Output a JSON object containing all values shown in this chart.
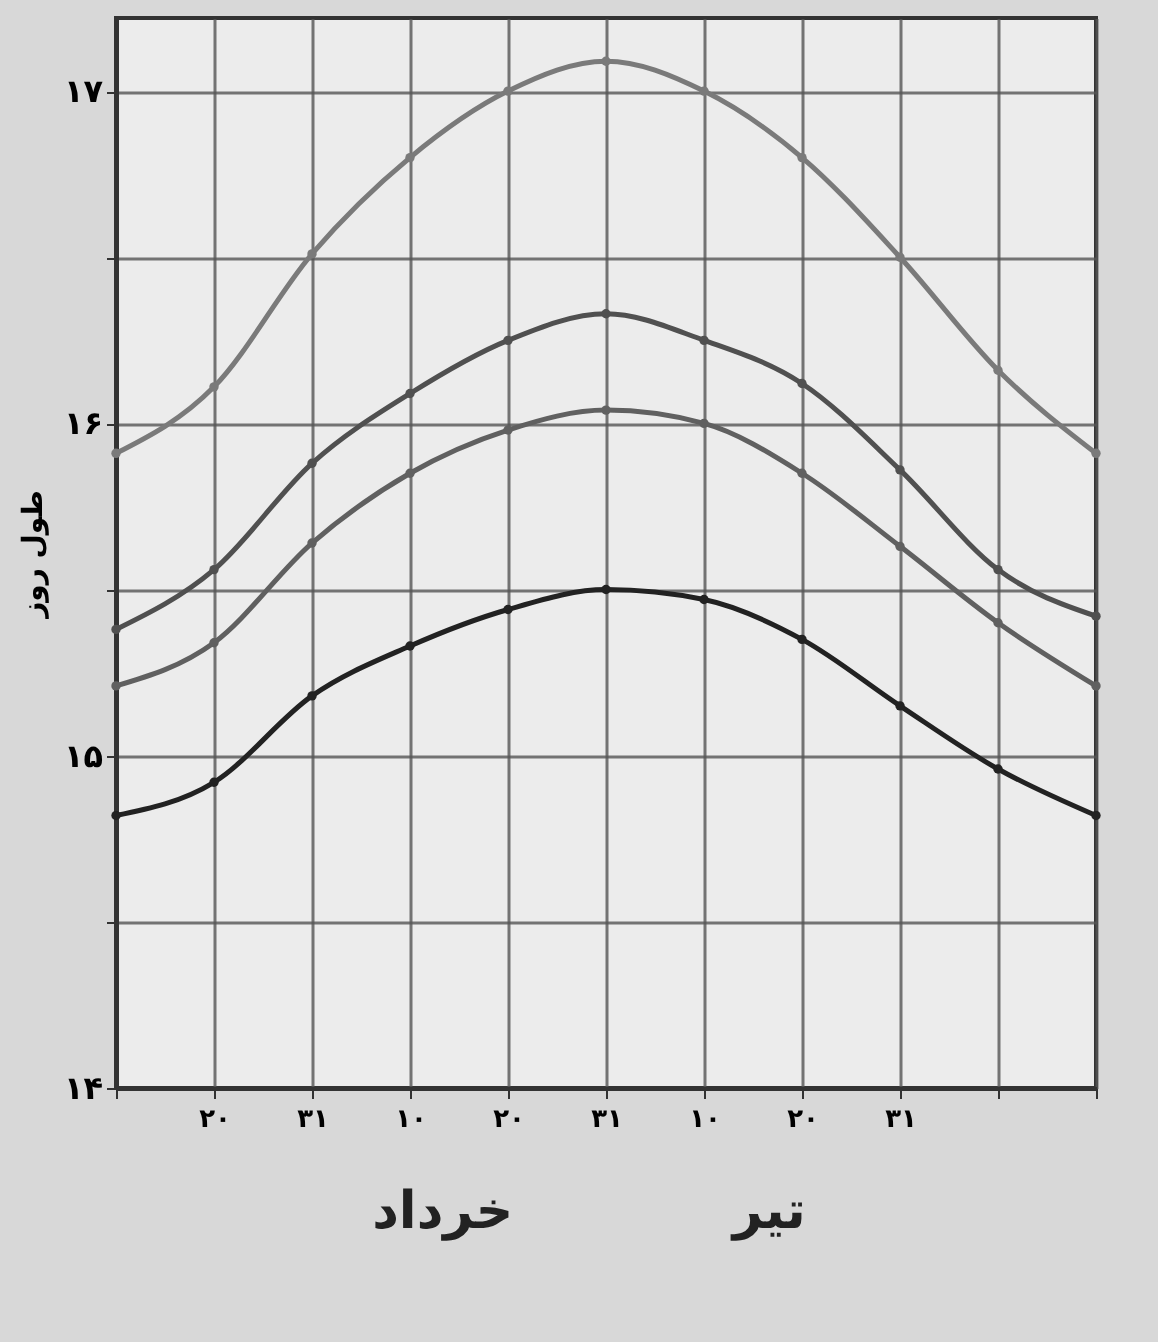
{
  "chart_data": {
    "type": "line",
    "ylabel": "طول روز",
    "categories": [
      null,
      "۲۰",
      "۳۱",
      "۱۰",
      "۲۰",
      "۳۱",
      "۱۰",
      "۲۰",
      "۳۱",
      null,
      null
    ],
    "series": [
      {
        "color": "#7a7a7a",
        "values": [
          15.91,
          16.11,
          16.51,
          16.8,
          17.0,
          17.09,
          17.0,
          16.8,
          16.5,
          16.16,
          15.91
        ]
      },
      {
        "color": "#505050",
        "values": [
          15.38,
          15.56,
          15.88,
          16.09,
          16.25,
          16.33,
          16.25,
          16.12,
          15.86,
          15.56,
          15.42
        ]
      },
      {
        "color": "#606060",
        "values": [
          15.21,
          15.34,
          15.64,
          15.85,
          15.98,
          16.04,
          16.0,
          15.85,
          15.63,
          15.4,
          15.21
        ]
      },
      {
        "color": "#222222",
        "values": [
          14.82,
          14.92,
          15.18,
          15.33,
          15.44,
          15.5,
          15.47,
          15.35,
          15.15,
          14.96,
          14.82
        ]
      }
    ],
    "ylim": [
      14,
      17.22
    ],
    "yticks": [
      {
        "value": 14,
        "label": "۱۴"
      },
      {
        "value": 14.5,
        "label": null
      },
      {
        "value": 15,
        "label": "۱۵"
      },
      {
        "value": 15.5,
        "label": null
      },
      {
        "value": 16,
        "label": "۱۶"
      },
      {
        "value": 16.5,
        "label": null
      },
      {
        "value": 17,
        "label": "۱۷"
      }
    ],
    "annotations": [
      "خرداد",
      "تیر"
    ],
    "grid": true,
    "marker": "circle",
    "line_style": "solid"
  }
}
